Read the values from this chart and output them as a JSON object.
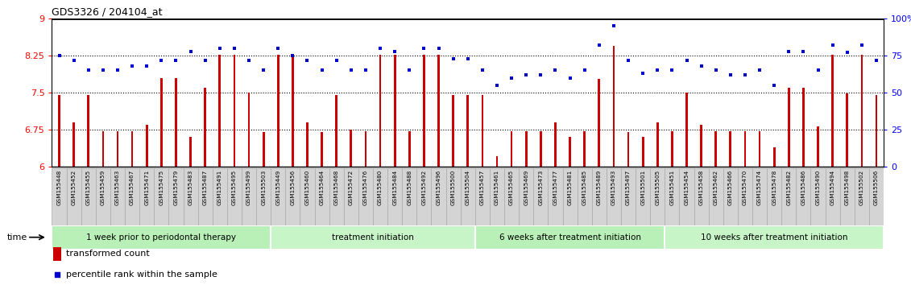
{
  "title": "GDS3326 / 204104_at",
  "samples": [
    "GSM155448",
    "GSM155452",
    "GSM155455",
    "GSM155459",
    "GSM155463",
    "GSM155467",
    "GSM155471",
    "GSM155475",
    "GSM155479",
    "GSM155483",
    "GSM155487",
    "GSM155491",
    "GSM155495",
    "GSM155499",
    "GSM155503",
    "GSM155449",
    "GSM155456",
    "GSM155460",
    "GSM155464",
    "GSM155468",
    "GSM155472",
    "GSM155476",
    "GSM155480",
    "GSM155484",
    "GSM155488",
    "GSM155492",
    "GSM155496",
    "GSM155500",
    "GSM155504",
    "GSM155457",
    "GSM155461",
    "GSM155465",
    "GSM155469",
    "GSM155473",
    "GSM155477",
    "GSM155481",
    "GSM155485",
    "GSM155489",
    "GSM155493",
    "GSM155497",
    "GSM155501",
    "GSM155505",
    "GSM155451",
    "GSM155454",
    "GSM155458",
    "GSM155462",
    "GSM155466",
    "GSM155470",
    "GSM155474",
    "GSM155478",
    "GSM155482",
    "GSM155486",
    "GSM155490",
    "GSM155494",
    "GSM155498",
    "GSM155502",
    "GSM155506"
  ],
  "bar_values": [
    7.45,
    6.9,
    7.45,
    6.72,
    6.72,
    6.72,
    6.85,
    7.8,
    7.8,
    6.6,
    7.6,
    8.27,
    8.27,
    7.5,
    6.7,
    8.27,
    8.27,
    6.9,
    6.7,
    7.45,
    6.75,
    6.72,
    8.27,
    8.27,
    6.72,
    8.27,
    8.27,
    7.45,
    7.45,
    7.45,
    6.22,
    6.72,
    6.72,
    6.72,
    6.9,
    6.6,
    6.72,
    7.78,
    8.45,
    6.7,
    6.6,
    6.9,
    6.72,
    7.5,
    6.85,
    6.72,
    6.72,
    6.72,
    6.72,
    6.4,
    7.6,
    7.6,
    6.82,
    8.27,
    7.48,
    8.27,
    7.45
  ],
  "percentile_values": [
    75,
    72,
    65,
    65,
    65,
    68,
    68,
    72,
    72,
    78,
    72,
    80,
    80,
    72,
    65,
    80,
    75,
    72,
    65,
    72,
    65,
    65,
    80,
    78,
    65,
    80,
    80,
    73,
    73,
    65,
    55,
    60,
    62,
    62,
    65,
    60,
    65,
    82,
    95,
    72,
    63,
    65,
    65,
    72,
    68,
    65,
    62,
    62,
    65,
    55,
    78,
    78,
    65,
    82,
    77,
    82,
    72
  ],
  "group_labels": [
    "1 week prior to periodontal therapy",
    "treatment initiation",
    "6 weeks after treatment initiation",
    "10 weeks after treatment initiation"
  ],
  "group_sizes": [
    15,
    14,
    13,
    15
  ],
  "group_colors": [
    "#b8f0b8",
    "#c8f5c8",
    "#b8f0b8",
    "#c8f5c8"
  ],
  "ylim_left": [
    6.0,
    9.0
  ],
  "ylim_right": [
    0,
    100
  ],
  "yticks_left": [
    6.0,
    6.75,
    7.5,
    8.25,
    9.0
  ],
  "yticks_right": [
    0,
    25,
    50,
    75,
    100
  ],
  "hlines": [
    6.75,
    7.5,
    8.25
  ],
  "bar_color": "#cc0000",
  "dot_color": "#0000cc",
  "bar_bottom": 6.0,
  "cell_color": "#d4d4d4",
  "cell_border_color": "#aaaaaa"
}
